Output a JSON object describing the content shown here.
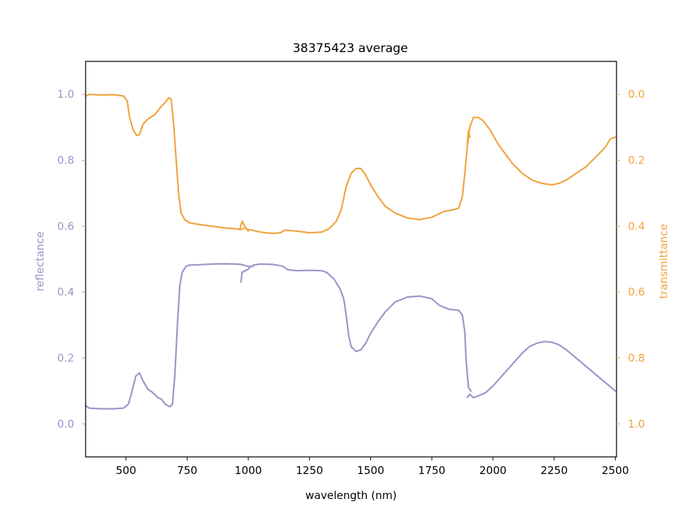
{
  "chart_data": {
    "type": "line",
    "title": "38375423 average",
    "xlabel": "wavelength (nm)",
    "ylabel_left": "reflectance",
    "ylabel_right": "transmittance",
    "xlim": [
      335,
      2505
    ],
    "ylim_left": [
      -0.1,
      1.1
    ],
    "ylim_right": [
      1.1,
      -0.1
    ],
    "right_axis_inverted": true,
    "grid": false,
    "legend": "none",
    "x_ticks": [
      500,
      750,
      1000,
      1250,
      1500,
      1750,
      2000,
      2250,
      2500
    ],
    "y_ticks_left": [
      0.0,
      0.2,
      0.4,
      0.6,
      0.8,
      1.0
    ],
    "y_ticks_right": [
      0.0,
      0.2,
      0.4,
      0.6,
      0.8,
      1.0
    ],
    "x_tick_labels": [
      "500",
      "750",
      "1000",
      "1250",
      "1500",
      "1750",
      "2000",
      "2250",
      "2500"
    ],
    "y_tick_labels_left": [
      "0.0",
      "0.2",
      "0.4",
      "0.6",
      "0.8",
      "1.0"
    ],
    "y_tick_labels_right": [
      "0.0",
      "0.2",
      "0.4",
      "0.6",
      "0.8",
      "1.0"
    ],
    "colors": {
      "reflectance": "#9b95c9",
      "transmittance": "#f0a440",
      "axes": "#000000"
    },
    "series": [
      {
        "axis": "left",
        "segments": [
          [
            [
              335,
              0.055
            ],
            [
              350,
              0.048
            ],
            [
              400,
              0.046
            ],
            [
              450,
              0.046
            ],
            [
              490,
              0.048
            ],
            [
              510,
              0.06
            ],
            [
              525,
              0.1
            ],
            [
              540,
              0.145
            ],
            [
              555,
              0.155
            ],
            [
              570,
              0.13
            ],
            [
              590,
              0.105
            ],
            [
              610,
              0.095
            ],
            [
              630,
              0.08
            ],
            [
              645,
              0.075
            ],
            [
              660,
              0.06
            ],
            [
              680,
              0.052
            ],
            [
              690,
              0.06
            ],
            [
              700,
              0.15
            ],
            [
              710,
              0.3
            ],
            [
              720,
              0.42
            ],
            [
              730,
              0.46
            ],
            [
              745,
              0.478
            ],
            [
              760,
              0.482
            ],
            [
              800,
              0.483
            ],
            [
              850,
              0.485
            ],
            [
              900,
              0.486
            ],
            [
              950,
              0.485
            ],
            [
              970,
              0.484
            ],
            [
              1000,
              0.478
            ],
            [
              1020,
              0.478
            ]
          ],
          [
            [
              970,
              0.43
            ],
            [
              975,
              0.46
            ],
            [
              1000,
              0.47
            ],
            [
              1010,
              0.478
            ]
          ],
          [
            [
              1020,
              0.482
            ],
            [
              1050,
              0.485
            ],
            [
              1100,
              0.484
            ],
            [
              1140,
              0.479
            ],
            [
              1160,
              0.468
            ],
            [
              1200,
              0.465
            ],
            [
              1250,
              0.466
            ],
            [
              1300,
              0.465
            ],
            [
              1320,
              0.46
            ],
            [
              1350,
              0.44
            ],
            [
              1375,
              0.41
            ],
            [
              1390,
              0.38
            ],
            [
              1400,
              0.33
            ],
            [
              1410,
              0.27
            ],
            [
              1420,
              0.235
            ],
            [
              1440,
              0.22
            ],
            [
              1460,
              0.225
            ],
            [
              1480,
              0.245
            ],
            [
              1500,
              0.275
            ],
            [
              1530,
              0.31
            ],
            [
              1560,
              0.34
            ],
            [
              1600,
              0.37
            ],
            [
              1650,
              0.385
            ],
            [
              1700,
              0.388
            ],
            [
              1750,
              0.38
            ],
            [
              1780,
              0.36
            ],
            [
              1820,
              0.348
            ],
            [
              1860,
              0.345
            ],
            [
              1875,
              0.33
            ],
            [
              1885,
              0.28
            ],
            [
              1890,
              0.2
            ],
            [
              1895,
              0.15
            ],
            [
              1900,
              0.11
            ],
            [
              1910,
              0.1
            ]
          ],
          [
            [
              1895,
              0.08
            ],
            [
              1905,
              0.09
            ],
            [
              1920,
              0.08
            ],
            [
              1940,
              0.085
            ],
            [
              1970,
              0.095
            ],
            [
              2000,
              0.115
            ],
            [
              2030,
              0.14
            ],
            [
              2060,
              0.165
            ],
            [
              2090,
              0.19
            ],
            [
              2120,
              0.215
            ],
            [
              2150,
              0.235
            ],
            [
              2180,
              0.245
            ],
            [
              2210,
              0.25
            ],
            [
              2240,
              0.248
            ],
            [
              2270,
              0.24
            ],
            [
              2300,
              0.225
            ],
            [
              2340,
              0.2
            ],
            [
              2380,
              0.175
            ],
            [
              2420,
              0.15
            ],
            [
              2460,
              0.125
            ],
            [
              2500,
              0.1
            ]
          ]
        ]
      },
      {
        "axis": "right",
        "segments": [
          [
            [
              335,
              0.005
            ],
            [
              350,
              0.0
            ],
            [
              400,
              0.002
            ],
            [
              450,
              0.001
            ],
            [
              490,
              0.005
            ],
            [
              505,
              0.02
            ],
            [
              515,
              0.07
            ],
            [
              530,
              0.11
            ],
            [
              545,
              0.125
            ],
            [
              555,
              0.122
            ],
            [
              570,
              0.09
            ],
            [
              590,
              0.075
            ],
            [
              620,
              0.06
            ],
            [
              640,
              0.04
            ],
            [
              660,
              0.025
            ],
            [
              675,
              0.01
            ],
            [
              685,
              0.015
            ],
            [
              695,
              0.09
            ],
            [
              705,
              0.2
            ],
            [
              715,
              0.3
            ],
            [
              725,
              0.36
            ],
            [
              740,
              0.38
            ],
            [
              760,
              0.39
            ],
            [
              800,
              0.395
            ],
            [
              850,
              0.4
            ],
            [
              900,
              0.405
            ],
            [
              950,
              0.408
            ],
            [
              965,
              0.41
            ],
            [
              975,
              0.385
            ]
          ],
          [
            [
              975,
              0.385
            ],
            [
              985,
              0.4
            ],
            [
              1000,
              0.415
            ],
            [
              990,
              0.405
            ],
            [
              970,
              0.41
            ]
          ],
          [
            [
              1000,
              0.41
            ],
            [
              1050,
              0.418
            ],
            [
              1100,
              0.422
            ],
            [
              1130,
              0.42
            ],
            [
              1150,
              0.412
            ],
            [
              1200,
              0.415
            ],
            [
              1250,
              0.42
            ],
            [
              1300,
              0.418
            ],
            [
              1330,
              0.408
            ],
            [
              1360,
              0.385
            ],
            [
              1380,
              0.35
            ],
            [
              1400,
              0.28
            ],
            [
              1420,
              0.24
            ],
            [
              1440,
              0.225
            ],
            [
              1460,
              0.225
            ],
            [
              1480,
              0.245
            ],
            [
              1500,
              0.275
            ],
            [
              1530,
              0.31
            ],
            [
              1560,
              0.34
            ],
            [
              1600,
              0.36
            ],
            [
              1650,
              0.375
            ],
            [
              1700,
              0.38
            ],
            [
              1750,
              0.373
            ],
            [
              1780,
              0.362
            ],
            [
              1800,
              0.355
            ],
            [
              1840,
              0.35
            ],
            [
              1860,
              0.345
            ],
            [
              1875,
              0.31
            ],
            [
              1885,
              0.24
            ],
            [
              1895,
              0.16
            ],
            [
              1905,
              0.1
            ],
            [
              1920,
              0.07
            ],
            [
              1940,
              0.07
            ],
            [
              1960,
              0.08
            ],
            [
              1990,
              0.11
            ],
            [
              2020,
              0.15
            ],
            [
              2050,
              0.18
            ],
            [
              2080,
              0.21
            ],
            [
              2120,
              0.24
            ],
            [
              2160,
              0.26
            ],
            [
              2200,
              0.27
            ],
            [
              2240,
              0.275
            ],
            [
              2270,
              0.27
            ],
            [
              2300,
              0.26
            ],
            [
              2340,
              0.24
            ],
            [
              2380,
              0.22
            ],
            [
              2420,
              0.19
            ],
            [
              2460,
              0.16
            ],
            [
              2480,
              0.135
            ],
            [
              2500,
              0.13
            ]
          ],
          [
            [
              1895,
              0.15
            ],
            [
              1900,
              0.11
            ],
            [
              1905,
              0.13
            ]
          ]
        ]
      }
    ]
  }
}
